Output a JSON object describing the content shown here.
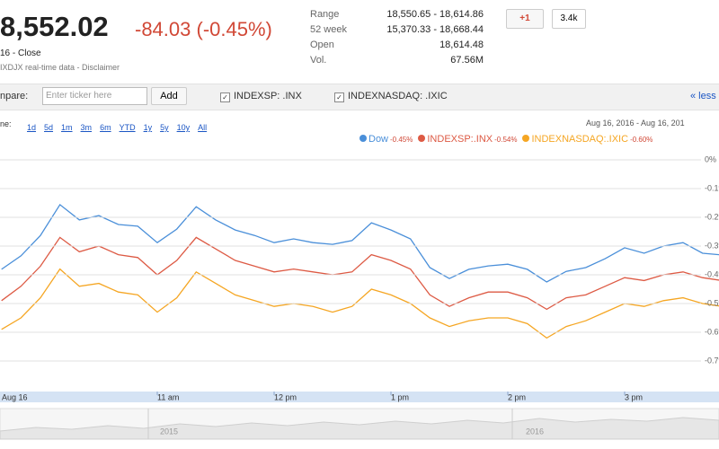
{
  "header": {
    "price": "8,552.02",
    "change": "-84.03 (-0.45%)",
    "status": "16 - Close",
    "source": "IXDJX real-time data - Disclaimer"
  },
  "stats": [
    [
      "Range",
      "18,550.65 - 18,614.86"
    ],
    [
      "52 week",
      "15,370.33 - 18,668.44"
    ],
    [
      "Open",
      "18,614.48"
    ],
    [
      "Vol.",
      "67.56M"
    ]
  ],
  "social": {
    "plus": "+1",
    "count": "3.4k"
  },
  "compare": {
    "label": "npare:",
    "placeholder": "Enter ticker here",
    "button": "Add",
    "tickers": [
      "INDEXSP: .INX",
      "INDEXNASDAQ: .IXIC"
    ],
    "less": "« less"
  },
  "zoom": {
    "label": "ne:",
    "options": [
      "1d",
      "5d",
      "1m",
      "3m",
      "6m",
      "YTD",
      "1y",
      "5y",
      "10y",
      "All"
    ]
  },
  "date_range": "Aug 16, 2016 - Aug 16, 201",
  "chart_data": {
    "type": "line",
    "x": [
      580,
      590,
      600,
      610,
      620,
      630,
      640,
      650,
      660,
      670,
      680,
      690,
      700,
      710,
      720,
      730,
      740,
      750,
      760,
      770,
      780,
      790,
      800,
      810,
      820,
      830,
      840,
      850,
      860,
      870,
      880,
      890,
      900,
      910,
      920,
      930,
      940,
      950
    ],
    "xlim": [
      570,
      960
    ],
    "xticks": [
      {
        "value": 570,
        "label": "Aug 16"
      },
      {
        "value": 660,
        "label": "11 am"
      },
      {
        "value": 720,
        "label": "12 pm"
      },
      {
        "value": 780,
        "label": "1 pm"
      },
      {
        "value": 840,
        "label": "2 pm"
      },
      {
        "value": 900,
        "label": "3 pm"
      }
    ],
    "ylim": [
      -0.8,
      0.05
    ],
    "yticks": [
      {
        "value": 0,
        "label": "0%"
      },
      {
        "value": -0.1,
        "label": "-0.1%"
      },
      {
        "value": -0.2,
        "label": "-0.2%"
      },
      {
        "value": -0.3,
        "label": "-0.3%"
      },
      {
        "value": -0.4,
        "label": "-0.4%"
      },
      {
        "value": -0.5,
        "label": "-0.5%"
      },
      {
        "value": -0.6,
        "label": "-0.6%"
      },
      {
        "value": -0.7,
        "label": "-0.7%"
      }
    ],
    "grid": true,
    "series": [
      {
        "name": "Dow",
        "change": "-0.45%",
        "color": "#4a8fd9",
        "values": [
          -0.381,
          -0.334,
          -0.263,
          -0.156,
          -0.209,
          -0.194,
          -0.225,
          -0.231,
          -0.288,
          -0.241,
          -0.163,
          -0.209,
          -0.244,
          -0.263,
          -0.288,
          -0.275,
          -0.288,
          -0.294,
          -0.281,
          -0.219,
          -0.244,
          -0.275,
          -0.375,
          -0.413,
          -0.381,
          -0.369,
          -0.363,
          -0.381,
          -0.425,
          -0.388,
          -0.375,
          -0.344,
          -0.306,
          -0.325,
          -0.3,
          -0.288,
          -0.325,
          -0.331
        ]
      },
      {
        "name": "INDEXSP:.INX",
        "change": "-0.54%",
        "color": "#dd5a44",
        "values": [
          -0.49,
          -0.44,
          -0.37,
          -0.27,
          -0.32,
          -0.3,
          -0.33,
          -0.34,
          -0.4,
          -0.35,
          -0.27,
          -0.31,
          -0.35,
          -0.37,
          -0.39,
          -0.38,
          -0.39,
          -0.4,
          -0.39,
          -0.33,
          -0.35,
          -0.38,
          -0.47,
          -0.51,
          -0.48,
          -0.46,
          -0.46,
          -0.48,
          -0.52,
          -0.48,
          -0.47,
          -0.44,
          -0.41,
          -0.42,
          -0.4,
          -0.39,
          -0.41,
          -0.42
        ]
      },
      {
        "name": "INDEXNASDAQ:.IXIC",
        "change": "-0.60%",
        "color": "#f5a623",
        "values": [
          -0.59,
          -0.55,
          -0.48,
          -0.38,
          -0.44,
          -0.43,
          -0.46,
          -0.47,
          -0.53,
          -0.48,
          -0.39,
          -0.43,
          -0.47,
          -0.49,
          -0.51,
          -0.5,
          -0.51,
          -0.53,
          -0.51,
          -0.45,
          -0.47,
          -0.5,
          -0.55,
          -0.58,
          -0.56,
          -0.55,
          -0.55,
          -0.57,
          -0.62,
          -0.58,
          -0.56,
          -0.53,
          -0.5,
          -0.51,
          -0.49,
          -0.48,
          -0.5,
          -0.51
        ]
      }
    ]
  },
  "navigator": {
    "labels": [
      "2015",
      "2016"
    ]
  }
}
